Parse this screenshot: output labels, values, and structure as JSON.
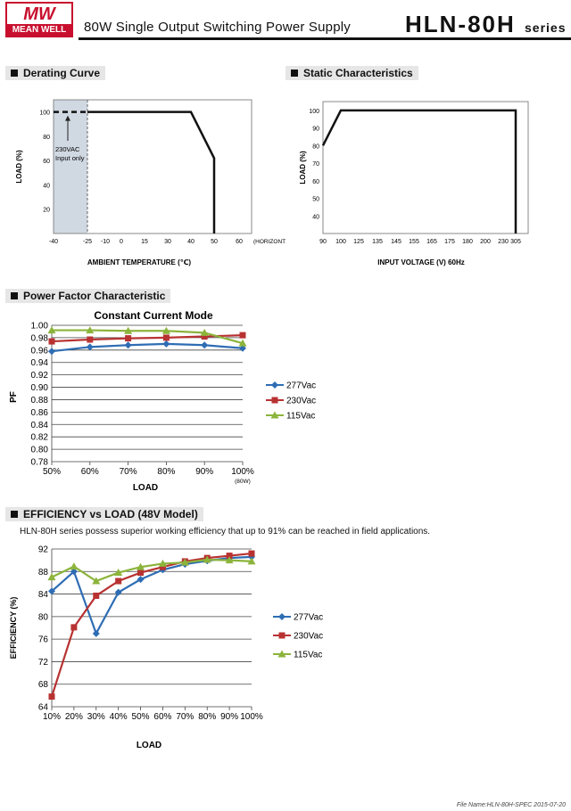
{
  "header": {
    "logo_text": "MEAN WELL",
    "product_title": "80W Single Output Switching Power Supply",
    "model": "HLN-80H",
    "series": "series"
  },
  "sections": {
    "derating": "Derating Curve",
    "static": "Static Characteristics",
    "pf": "Power Factor Characteristic",
    "efficiency": "EFFICIENCY vs LOAD (48V Model)"
  },
  "efficiency_description": "HLN-80H series possess superior working efficiency that up to 91% can be reached in field applications.",
  "footer": "File Name:HLN-80H-SPEC   2015-07-20",
  "colors": {
    "s277": "#2e6db4",
    "s230": "#b83232",
    "s115": "#8cb43c",
    "shade": "#d0d8e2"
  },
  "chart_data": [
    {
      "type": "line",
      "id": "derating",
      "xlabel": "AMBIENT TEMPERATURE (℃)",
      "ylabel": "LOAD (%)",
      "x_ticks": [
        -40,
        -25,
        -10,
        0,
        15,
        30,
        40,
        50,
        60
      ],
      "x_tick_labels": [
        "-40",
        "-25",
        "-10",
        "0",
        "15",
        "30",
        "40",
        "50",
        "60"
      ],
      "x_suffix": "(HORIZONTAL)",
      "y_ticks": [
        20,
        40,
        60,
        80,
        100
      ],
      "y_tick_labels": [
        "20",
        "40",
        "60",
        "80",
        "100"
      ],
      "annotation": [
        "230VAC",
        "Input only"
      ],
      "dashed_segment": {
        "x": [
          -40,
          -25
        ],
        "y": [
          100,
          100
        ]
      },
      "solid_segment": {
        "x": [
          -25,
          40,
          50,
          50
        ],
        "y": [
          100,
          100,
          62,
          0
        ]
      },
      "shaded_range": [
        -40,
        -25
      ]
    },
    {
      "type": "line",
      "id": "static",
      "xlabel": "INPUT VOLTAGE (V) 60Hz",
      "ylabel": "LOAD (%)",
      "x_ticks": [
        90,
        100,
        125,
        135,
        145,
        155,
        165,
        175,
        180,
        200,
        230,
        305
      ],
      "x_tick_labels": [
        "90",
        "100",
        "125",
        "135",
        "145",
        "155",
        "165",
        "175",
        "180",
        "200",
        "230",
        "305"
      ],
      "y_ticks": [
        40,
        50,
        60,
        70,
        80,
        90,
        100
      ],
      "y_tick_labels": [
        "40",
        "50",
        "60",
        "70",
        "80",
        "90",
        "100"
      ],
      "series": [
        {
          "x": [
            90,
            100,
            305,
            305
          ],
          "y": [
            80,
            100,
            100,
            0
          ]
        }
      ]
    },
    {
      "type": "line",
      "id": "pf",
      "title": "Constant Current Mode",
      "xlabel": "LOAD",
      "ylabel": "PF",
      "categories": [
        "50%",
        "60%",
        "70%",
        "80%",
        "90%",
        "100%"
      ],
      "category_note": "(80W)",
      "ylim": [
        0.78,
        1.0
      ],
      "y_ticks": [
        0.78,
        0.8,
        0.82,
        0.84,
        0.86,
        0.88,
        0.9,
        0.92,
        0.94,
        0.96,
        0.98,
        1.0
      ],
      "y_tick_labels": [
        "0.78",
        "0.80",
        "0.82",
        "0.84",
        "0.86",
        "0.88",
        "0.90",
        "0.92",
        "0.94",
        "0.96",
        "0.98",
        "1.00"
      ],
      "series": [
        {
          "name": "277Vac",
          "values": [
            0.958,
            0.965,
            0.968,
            0.97,
            0.968,
            0.963
          ]
        },
        {
          "name": "230Vac",
          "values": [
            0.974,
            0.977,
            0.979,
            0.98,
            0.982,
            0.984
          ]
        },
        {
          "name": "115Vac",
          "values": [
            0.992,
            0.992,
            0.991,
            0.991,
            0.988,
            0.971
          ]
        }
      ]
    },
    {
      "type": "line",
      "id": "efficiency",
      "xlabel": "LOAD",
      "ylabel": "EFFICIENCY (%)",
      "categories": [
        "10%",
        "20%",
        "30%",
        "40%",
        "50%",
        "60%",
        "70%",
        "80%",
        "90%",
        "100%"
      ],
      "ylim": [
        64,
        92
      ],
      "y_ticks": [
        64,
        68,
        72,
        76,
        80,
        84,
        88,
        92
      ],
      "y_tick_labels": [
        "64",
        "68",
        "72",
        "76",
        "80",
        "84",
        "88",
        "92"
      ],
      "series": [
        {
          "name": "277Vac",
          "values": [
            84.5,
            88.0,
            77.0,
            84.3,
            86.6,
            88.3,
            89.3,
            89.9,
            90.4,
            90.6
          ]
        },
        {
          "name": "230Vac",
          "values": [
            65.8,
            78.1,
            83.7,
            86.3,
            87.8,
            88.8,
            89.8,
            90.4,
            90.8,
            91.2
          ]
        },
        {
          "name": "115Vac",
          "values": [
            87.0,
            88.9,
            86.3,
            87.8,
            88.8,
            89.4,
            89.6,
            90.1,
            90.0,
            89.8
          ]
        }
      ]
    }
  ]
}
